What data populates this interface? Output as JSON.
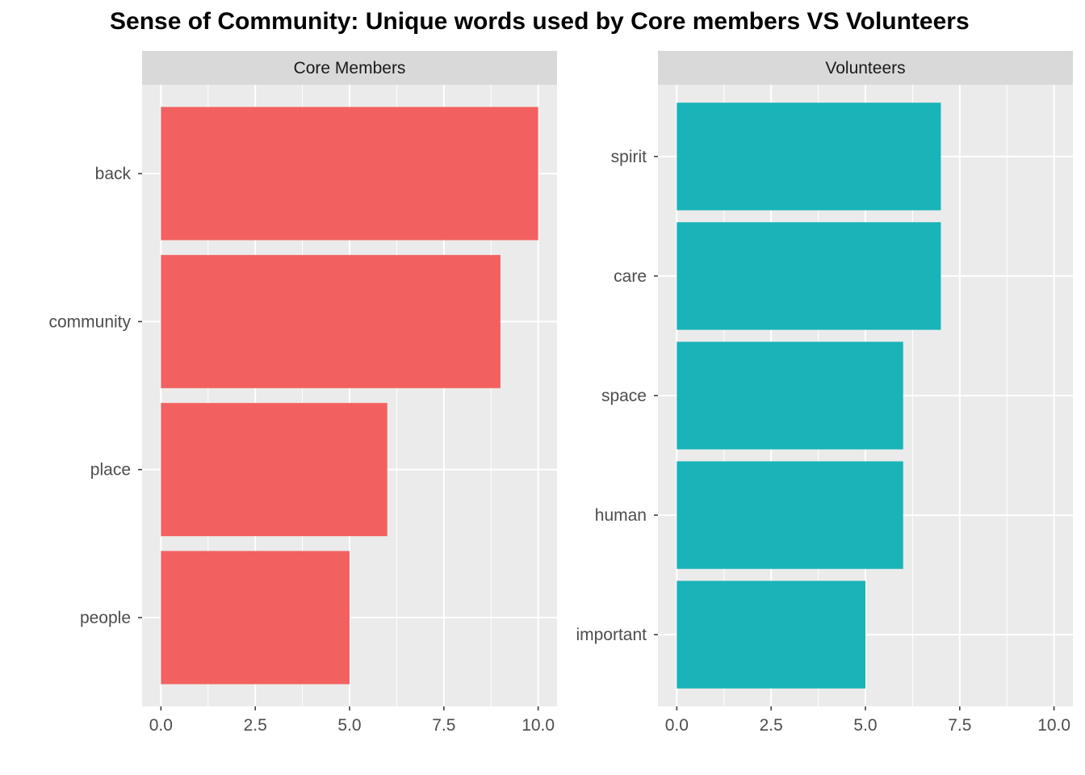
{
  "chart_data": {
    "type": "bar",
    "orientation": "horizontal",
    "title": "Sense of Community: Unique words used by Core members VS Volunteers",
    "xlim": [
      -0.5,
      10.5
    ],
    "x_ticks": [
      "0.0",
      "2.5",
      "5.0",
      "7.5",
      "10.0"
    ],
    "x_tick_values": [
      0,
      2.5,
      5,
      7.5,
      10
    ],
    "grid": true,
    "panels": [
      {
        "strip_label": "Core Members",
        "color": "#F26160",
        "categories": [
          "back",
          "community",
          "place",
          "people"
        ],
        "values": [
          10,
          9,
          6,
          5
        ]
      },
      {
        "strip_label": "Volunteers",
        "color": "#19B3B8",
        "categories": [
          "spirit",
          "care",
          "space",
          "human",
          "important"
        ],
        "values": [
          7,
          7,
          6,
          6,
          5
        ]
      }
    ]
  }
}
